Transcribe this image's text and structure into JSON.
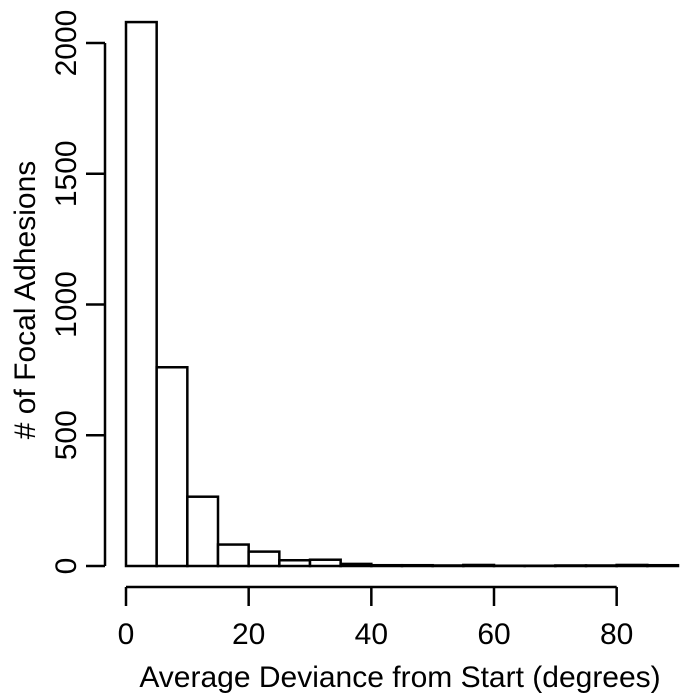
{
  "chart_data": {
    "type": "bar",
    "subtype": "histogram",
    "title": "",
    "xlabel": "Average Deviance from Start (degrees)",
    "ylabel": "# of Focal Adhesions",
    "bin_width": 5,
    "bins": [
      {
        "start": 0,
        "end": 5,
        "count": 2080
      },
      {
        "start": 5,
        "end": 10,
        "count": 760
      },
      {
        "start": 10,
        "end": 15,
        "count": 265
      },
      {
        "start": 15,
        "end": 20,
        "count": 82
      },
      {
        "start": 20,
        "end": 25,
        "count": 55
      },
      {
        "start": 25,
        "end": 30,
        "count": 22
      },
      {
        "start": 30,
        "end": 35,
        "count": 24
      },
      {
        "start": 35,
        "end": 40,
        "count": 8
      },
      {
        "start": 40,
        "end": 45,
        "count": 3
      },
      {
        "start": 45,
        "end": 50,
        "count": 3
      },
      {
        "start": 50,
        "end": 55,
        "count": 2
      },
      {
        "start": 55,
        "end": 60,
        "count": 4
      },
      {
        "start": 60,
        "end": 65,
        "count": 1
      },
      {
        "start": 65,
        "end": 70,
        "count": 1
      },
      {
        "start": 70,
        "end": 75,
        "count": 2
      },
      {
        "start": 75,
        "end": 80,
        "count": 2
      },
      {
        "start": 80,
        "end": 85,
        "count": 4
      },
      {
        "start": 85,
        "end": 90,
        "count": 3
      }
    ],
    "xlim": [
      0,
      90
    ],
    "ylim": [
      0,
      2080
    ],
    "xticks": [
      0,
      20,
      40,
      60,
      80
    ],
    "yticks": [
      0,
      500,
      1000,
      1500,
      2000
    ],
    "grid": false,
    "legend": "none"
  }
}
